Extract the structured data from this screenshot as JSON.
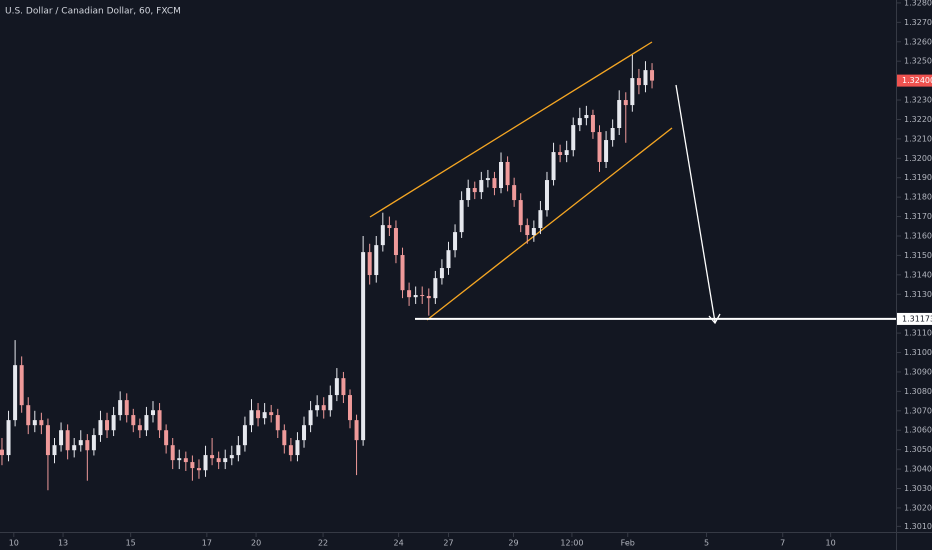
{
  "chart_data": {
    "type": "candlestick",
    "title": "U.S. Dollar / Canadian Dollar, 60, FXCM",
    "up_color": "#e6e8ee",
    "down_color": "#ef9a9a",
    "grid": false,
    "xlim": [
      -0.3,
      136.0
    ],
    "ylim": [
      1.30076,
      1.32815
    ],
    "xticks": [
      {
        "value": 1.8,
        "label": "10"
      },
      {
        "value": 9.3,
        "label": "13"
      },
      {
        "value": 19.6,
        "label": "15"
      },
      {
        "value": 31.2,
        "label": "17"
      },
      {
        "value": 38.7,
        "label": "20"
      },
      {
        "value": 48.9,
        "label": "22"
      },
      {
        "value": 60.4,
        "label": "24"
      },
      {
        "value": 68.0,
        "label": "27"
      },
      {
        "value": 77.9,
        "label": "29"
      },
      {
        "value": 86.8,
        "label": "12:00"
      },
      {
        "value": 95.3,
        "label": "Feb"
      },
      {
        "value": 107.3,
        "label": "5"
      },
      {
        "value": 118.9,
        "label": "7"
      },
      {
        "value": 126.2,
        "label": "10"
      }
    ],
    "yticks": [
      {
        "value": 1.328,
        "label": "1.32800"
      },
      {
        "value": 1.327,
        "label": "1.32700"
      },
      {
        "value": 1.326,
        "label": "1.32600"
      },
      {
        "value": 1.325,
        "label": "1.32500"
      },
      {
        "value": 1.323,
        "label": "1.32300"
      },
      {
        "value": 1.322,
        "label": "1.32200"
      },
      {
        "value": 1.321,
        "label": "1.32100"
      },
      {
        "value": 1.32,
        "label": "1.32000"
      },
      {
        "value": 1.319,
        "label": "1.31900"
      },
      {
        "value": 1.318,
        "label": "1.31800"
      },
      {
        "value": 1.317,
        "label": "1.31700"
      },
      {
        "value": 1.316,
        "label": "1.31600"
      },
      {
        "value": 1.315,
        "label": "1.31500"
      },
      {
        "value": 1.314,
        "label": "1.31400"
      },
      {
        "value": 1.313,
        "label": "1.31300"
      },
      {
        "value": 1.311,
        "label": "1.31100"
      },
      {
        "value": 1.31,
        "label": "1.31000"
      },
      {
        "value": 1.309,
        "label": "1.30900"
      },
      {
        "value": 1.308,
        "label": "1.30800"
      },
      {
        "value": 1.307,
        "label": "1.30700"
      },
      {
        "value": 1.306,
        "label": "1.30600"
      },
      {
        "value": 1.305,
        "label": "1.30500"
      },
      {
        "value": 1.304,
        "label": "1.30400"
      },
      {
        "value": 1.303,
        "label": "1.30300"
      },
      {
        "value": 1.302,
        "label": "1.30200"
      },
      1.30105
    ],
    "hline": 1.31173,
    "last_price": {
      "value": 1.324,
      "label": "1.32400"
    },
    "ohlc": [
      [
        1.305,
        1.3056,
        1.3042,
        1.30472
      ],
      [
        1.30472,
        1.307,
        1.3044,
        1.30652
      ],
      [
        1.30652,
        1.31064,
        1.3062,
        1.30935
      ],
      [
        1.30935,
        1.3098,
        1.3069,
        1.30729
      ],
      [
        1.30729,
        1.3077,
        1.3058,
        1.30626
      ],
      [
        1.30626,
        1.307,
        1.3059,
        1.30652
      ],
      [
        1.30652,
        1.3069,
        1.3058,
        1.30626
      ],
      [
        1.30626,
        1.3066,
        1.30291,
        1.30472
      ],
      [
        1.30472,
        1.3056,
        1.3043,
        1.30523
      ],
      [
        1.30523,
        1.3064,
        1.3049,
        1.306
      ],
      [
        1.306,
        1.3063,
        1.3045,
        1.30497
      ],
      [
        1.30497,
        1.3056,
        1.3046,
        1.30523
      ],
      [
        1.30523,
        1.306,
        1.3049,
        1.30549
      ],
      [
        1.30549,
        1.3058,
        1.3034,
        1.30497
      ],
      [
        1.30497,
        1.3061,
        1.3047,
        1.30575
      ],
      [
        1.30575,
        1.307,
        1.3054,
        1.30652
      ],
      [
        1.30652,
        1.3069,
        1.3056,
        1.306
      ],
      [
        1.306,
        1.3072,
        1.3057,
        1.30678
      ],
      [
        1.30678,
        1.308,
        1.3065,
        1.30755
      ],
      [
        1.30755,
        1.3079,
        1.3064,
        1.30678
      ],
      [
        1.30678,
        1.3071,
        1.3059,
        1.30626
      ],
      [
        1.30626,
        1.3066,
        1.3056,
        1.306
      ],
      [
        1.306,
        1.3072,
        1.3057,
        1.30678
      ],
      [
        1.30678,
        1.3075,
        1.3064,
        1.30703
      ],
      [
        1.30703,
        1.3074,
        1.3056,
        1.306
      ],
      [
        1.306,
        1.3063,
        1.3048,
        1.30523
      ],
      [
        1.30523,
        1.3056,
        1.304,
        1.30446
      ],
      [
        1.30446,
        1.305,
        1.304,
        1.30456
      ],
      [
        1.30456,
        1.3049,
        1.3039,
        1.30436
      ],
      [
        1.30436,
        1.3047,
        1.3034,
        1.30405
      ],
      [
        1.30405,
        1.3045,
        1.3035,
        1.30394
      ],
      [
        1.30394,
        1.3052,
        1.3036,
        1.30472
      ],
      [
        1.30472,
        1.3056,
        1.3042,
        1.30456
      ],
      [
        1.30456,
        1.3049,
        1.304,
        1.30436
      ],
      [
        1.30436,
        1.305,
        1.304,
        1.30456
      ],
      [
        1.30456,
        1.3052,
        1.3042,
        1.30472
      ],
      [
        1.30472,
        1.3057,
        1.3044,
        1.30523
      ],
      [
        1.30523,
        1.3067,
        1.3049,
        1.30626
      ],
      [
        1.30626,
        1.3076,
        1.3059,
        1.30703
      ],
      [
        1.30703,
        1.3074,
        1.3062,
        1.30662
      ],
      [
        1.30662,
        1.3074,
        1.3063,
        1.30693
      ],
      [
        1.30693,
        1.3073,
        1.3064,
        1.30678
      ],
      [
        1.30678,
        1.3071,
        1.3056,
        1.306
      ],
      [
        1.306,
        1.3063,
        1.3048,
        1.30523
      ],
      [
        1.30523,
        1.3056,
        1.3044,
        1.30472
      ],
      [
        1.30472,
        1.3059,
        1.3044,
        1.30549
      ],
      [
        1.30549,
        1.3067,
        1.3051,
        1.30626
      ],
      [
        1.30626,
        1.3075,
        1.3059,
        1.30703
      ],
      [
        1.30703,
        1.3078,
        1.3067,
        1.30729
      ],
      [
        1.30729,
        1.3077,
        1.3066,
        1.30703
      ],
      [
        1.30703,
        1.3083,
        1.3067,
        1.30781
      ],
      [
        1.30781,
        1.3092,
        1.3075,
        1.30868
      ],
      [
        1.30868,
        1.309,
        1.3074,
        1.30781
      ],
      [
        1.30781,
        1.3081,
        1.3061,
        1.30652
      ],
      [
        1.30652,
        1.3068,
        1.30369,
        1.30549
      ],
      [
        1.30549,
        1.316,
        1.3052,
        1.31517
      ],
      [
        1.31517,
        1.3156,
        1.3135,
        1.31399
      ],
      [
        1.31399,
        1.316,
        1.3136,
        1.31553
      ],
      [
        1.31553,
        1.3172,
        1.3152,
        1.31656
      ],
      [
        1.31656,
        1.317,
        1.316,
        1.31641
      ],
      [
        1.31641,
        1.3168,
        1.3146,
        1.31502
      ],
      [
        1.31502,
        1.3154,
        1.3128,
        1.31321
      ],
      [
        1.31321,
        1.3136,
        1.3124,
        1.31285
      ],
      [
        1.31285,
        1.3134,
        1.3125,
        1.31296
      ],
      [
        1.31296,
        1.3134,
        1.3125,
        1.31291
      ],
      [
        1.31291,
        1.3133,
        1.3119,
        1.3128
      ],
      [
        1.3128,
        1.3142,
        1.3125,
        1.31383
      ],
      [
        1.31383,
        1.3148,
        1.3135,
        1.31435
      ],
      [
        1.31435,
        1.3157,
        1.314,
        1.31527
      ],
      [
        1.31527,
        1.3166,
        1.3149,
        1.3162
      ],
      [
        1.3162,
        1.3183,
        1.3159,
        1.31785
      ],
      [
        1.31785,
        1.3189,
        1.3175,
        1.31847
      ],
      [
        1.31847,
        1.3188,
        1.3179,
        1.31826
      ],
      [
        1.31826,
        1.3193,
        1.3179,
        1.31888
      ],
      [
        1.31888,
        1.3194,
        1.3185,
        1.31898
      ],
      [
        1.31898,
        1.3193,
        1.3181,
        1.31847
      ],
      [
        1.31847,
        1.3203,
        1.3182,
        1.31981
      ],
      [
        1.31981,
        1.3201,
        1.3183,
        1.31862
      ],
      [
        1.31862,
        1.319,
        1.3175,
        1.31785
      ],
      [
        1.31785,
        1.3182,
        1.3162,
        1.31656
      ],
      [
        1.31656,
        1.3169,
        1.3156,
        1.31605
      ],
      [
        1.31605,
        1.3168,
        1.3157,
        1.31641
      ],
      [
        1.31641,
        1.3178,
        1.3161,
        1.31733
      ],
      [
        1.31733,
        1.3193,
        1.317,
        1.31888
      ],
      [
        1.31888,
        1.3208,
        1.3186,
        1.32032
      ],
      [
        1.32032,
        1.3207,
        1.3198,
        1.32017
      ],
      [
        1.32017,
        1.3209,
        1.3198,
        1.32042
      ],
      [
        1.32042,
        1.3221,
        1.3201,
        1.32171
      ],
      [
        1.32171,
        1.3226,
        1.3214,
        1.32207
      ],
      [
        1.32207,
        1.3227,
        1.3217,
        1.32223
      ],
      [
        1.32223,
        1.3225,
        1.321,
        1.32135
      ],
      [
        1.32135,
        1.3217,
        1.3193,
        1.31981
      ],
      [
        1.31981,
        1.3214,
        1.3195,
        1.32094
      ],
      [
        1.32094,
        1.322,
        1.3206,
        1.32156
      ],
      [
        1.32156,
        1.3235,
        1.3212,
        1.323
      ],
      [
        1.323,
        1.3234,
        1.3208,
        1.32274
      ],
      [
        1.32274,
        1.32532,
        1.3224,
        1.32413
      ],
      [
        1.32413,
        1.3246,
        1.3233,
        1.32377
      ],
      [
        1.32377,
        1.325,
        1.3234,
        1.32454
      ],
      [
        1.32454,
        1.3249,
        1.3236,
        1.324
      ]
    ]
  }
}
